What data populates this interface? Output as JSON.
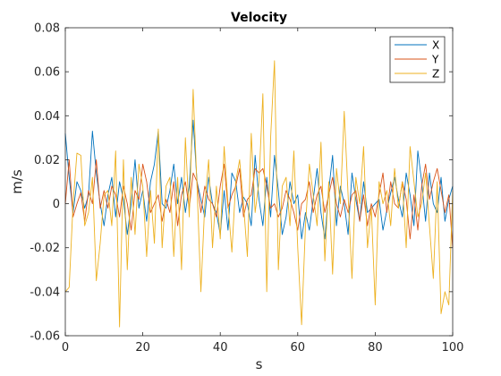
{
  "chart_data": {
    "type": "line",
    "title": "Velocity",
    "xlabel": "s",
    "ylabel": "m/s",
    "xlim": [
      0,
      100
    ],
    "ylim": [
      -0.06,
      0.08
    ],
    "xticks": [
      0,
      20,
      40,
      60,
      80,
      100
    ],
    "xtick_labels": [
      "0",
      "20",
      "40",
      "60",
      "80",
      "100"
    ],
    "yticks": [
      -0.06,
      -0.04,
      -0.02,
      0,
      0.02,
      0.04,
      0.06,
      0.08
    ],
    "ytick_labels": [
      "-0.06",
      "-0.04",
      "-0.02",
      "0",
      "0.02",
      "0.04",
      "0.06",
      "0.08"
    ],
    "grid": false,
    "legend_position": "top-right",
    "x": [
      0,
      1,
      2,
      3,
      4,
      5,
      6,
      7,
      8,
      9,
      10,
      11,
      12,
      13,
      14,
      15,
      16,
      17,
      18,
      19,
      20,
      21,
      22,
      23,
      24,
      25,
      26,
      27,
      28,
      29,
      30,
      31,
      32,
      33,
      34,
      35,
      36,
      37,
      38,
      39,
      40,
      41,
      42,
      43,
      44,
      45,
      46,
      47,
      48,
      49,
      50,
      51,
      52,
      53,
      54,
      55,
      56,
      57,
      58,
      59,
      60,
      61,
      62,
      63,
      64,
      65,
      66,
      67,
      68,
      69,
      70,
      71,
      72,
      73,
      74,
      75,
      76,
      77,
      78,
      79,
      80,
      81,
      82,
      83,
      84,
      85,
      86,
      87,
      88,
      89,
      90,
      91,
      92,
      93,
      94,
      95,
      96,
      97,
      98,
      99,
      100
    ],
    "series": [
      {
        "name": "X",
        "color": "#0072BD",
        "values": [
          0.032,
          0.012,
          -0.004,
          0.01,
          0.006,
          -0.002,
          0.004,
          0.033,
          0.014,
          0.0,
          -0.01,
          0.004,
          0.012,
          -0.006,
          0.01,
          0.002,
          -0.014,
          0.0,
          0.02,
          -0.002,
          0.006,
          -0.008,
          0.01,
          0.018,
          0.033,
          0.0,
          -0.002,
          0.006,
          0.018,
          0.0,
          0.012,
          -0.004,
          0.008,
          0.038,
          0.01,
          0.002,
          -0.006,
          0.012,
          0.0,
          -0.004,
          -0.014,
          0.006,
          -0.012,
          0.014,
          0.01,
          -0.004,
          0.003,
          0.0,
          -0.01,
          0.022,
          0.002,
          -0.01,
          0.012,
          -0.006,
          0.022,
          0.006,
          -0.014,
          -0.006,
          0.01,
          0.0,
          0.004,
          -0.016,
          -0.004,
          -0.012,
          0.002,
          0.016,
          -0.004,
          -0.016,
          0.006,
          0.022,
          -0.01,
          0.008,
          0.0,
          -0.014,
          0.014,
          0.002,
          -0.008,
          0.01,
          -0.004,
          -0.002,
          0.0,
          0.002,
          -0.012,
          -0.003,
          0.005,
          0.012,
          0.002,
          -0.006,
          0.014,
          0.004,
          -0.01,
          0.024,
          0.01,
          -0.008,
          0.014,
          0.0,
          -0.004,
          0.012,
          -0.008,
          0.002,
          0.008
        ]
      },
      {
        "name": "Y",
        "color": "#D95319",
        "values": [
          0.0,
          0.02,
          -0.006,
          0.0,
          0.005,
          -0.008,
          0.006,
          0.0,
          0.02,
          -0.002,
          0.006,
          -0.002,
          0.008,
          0.004,
          -0.006,
          0.008,
          0.0,
          -0.012,
          0.006,
          0.002,
          0.018,
          0.01,
          -0.004,
          0.0,
          0.004,
          -0.008,
          0.002,
          -0.004,
          0.01,
          -0.01,
          0.004,
          0.01,
          -0.002,
          0.014,
          0.01,
          -0.004,
          0.008,
          0.002,
          0.0,
          -0.006,
          0.008,
          0.018,
          -0.002,
          0.004,
          0.008,
          0.016,
          -0.006,
          0.002,
          0.004,
          0.016,
          0.014,
          0.016,
          0.008,
          -0.002,
          0.0,
          -0.006,
          -0.002,
          0.006,
          0.002,
          -0.004,
          -0.012,
          0.0,
          0.002,
          0.01,
          -0.004,
          0.004,
          0.008,
          -0.004,
          0.004,
          0.012,
          0.0,
          -0.006,
          0.002,
          -0.004,
          0.004,
          0.006,
          -0.008,
          0.004,
          -0.01,
          0.0,
          -0.006,
          0.004,
          0.014,
          -0.004,
          0.01,
          0.0,
          -0.002,
          0.01,
          0.002,
          -0.016,
          0.004,
          -0.012,
          0.008,
          0.018,
          0.002,
          0.01,
          0.016,
          0.006,
          -0.004,
          0.004,
          -0.02
        ]
      },
      {
        "name": "Z",
        "color": "#EDB120",
        "values": [
          -0.04,
          -0.038,
          0.0,
          0.023,
          0.022,
          -0.01,
          -0.004,
          0.012,
          -0.035,
          -0.018,
          0.004,
          0.006,
          -0.01,
          0.024,
          -0.056,
          0.02,
          -0.03,
          0.012,
          -0.014,
          0.018,
          0.008,
          -0.024,
          0.006,
          -0.018,
          0.034,
          -0.02,
          0.008,
          0.012,
          -0.024,
          0.012,
          -0.03,
          0.03,
          -0.006,
          0.052,
          0.008,
          -0.04,
          0.0,
          0.02,
          -0.02,
          0.008,
          -0.016,
          0.026,
          0.0,
          -0.022,
          0.01,
          0.02,
          0.0,
          -0.024,
          0.032,
          -0.004,
          0.01,
          0.05,
          -0.04,
          0.03,
          0.065,
          -0.03,
          0.008,
          0.012,
          -0.01,
          0.024,
          -0.02,
          -0.055,
          -0.01,
          0.018,
          0.004,
          -0.01,
          0.028,
          -0.026,
          0.01,
          -0.032,
          0.016,
          0.0,
          0.042,
          0.004,
          -0.034,
          0.012,
          0.0,
          0.026,
          -0.02,
          -0.002,
          -0.046,
          0.01,
          0.0,
          0.006,
          -0.01,
          0.016,
          -0.002,
          0.01,
          -0.02,
          0.026,
          0.01,
          -0.006,
          0.0,
          0.014,
          -0.01,
          -0.034,
          0.01,
          -0.05,
          -0.04,
          -0.046,
          0.006
        ]
      }
    ]
  }
}
